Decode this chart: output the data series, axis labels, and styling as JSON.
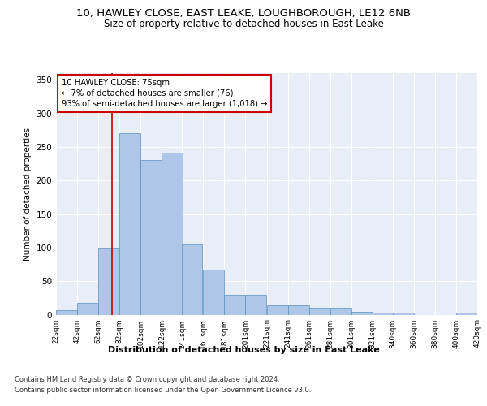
{
  "title1": "10, HAWLEY CLOSE, EAST LEAKE, LOUGHBOROUGH, LE12 6NB",
  "title2": "Size of property relative to detached houses in East Leake",
  "xlabel": "Distribution of detached houses by size in East Leake",
  "ylabel": "Number of detached properties",
  "footnote1": "Contains HM Land Registry data © Crown copyright and database right 2024.",
  "footnote2": "Contains public sector information licensed under the Open Government Licence v3.0.",
  "annotation_line1": "10 HAWLEY CLOSE: 75sqm",
  "annotation_line2": "← 7% of detached houses are smaller (76)",
  "annotation_line3": "93% of semi-detached houses are larger (1,018) →",
  "bar_left_edges": [
    22,
    42,
    62,
    82,
    102,
    122,
    141,
    161,
    181,
    201,
    221,
    241,
    261,
    281,
    301,
    321,
    340,
    360,
    380,
    400
  ],
  "bar_widths": [
    20,
    20,
    20,
    20,
    20,
    20,
    19,
    20,
    20,
    20,
    20,
    20,
    20,
    20,
    20,
    19,
    20,
    20,
    20,
    20
  ],
  "bar_heights": [
    7,
    18,
    99,
    270,
    230,
    241,
    105,
    67,
    30,
    30,
    14,
    14,
    10,
    10,
    4,
    3,
    3,
    0,
    0,
    3
  ],
  "bar_color": "#aec6e8",
  "bar_edge_color": "#5a8fc0",
  "property_x": 75,
  "vline_color": "#cc0000",
  "annotation_box_color": "#cc0000",
  "bg_color": "#e8eef8",
  "grid_color": "#ffffff",
  "xlim": [
    22,
    420
  ],
  "ylim": [
    0,
    360
  ],
  "yticks": [
    0,
    50,
    100,
    150,
    200,
    250,
    300,
    350
  ],
  "xtick_labels": [
    "22sqm",
    "42sqm",
    "62sqm",
    "82sqm",
    "102sqm",
    "122sqm",
    "141sqm",
    "161sqm",
    "181sqm",
    "201sqm",
    "221sqm",
    "241sqm",
    "261sqm",
    "281sqm",
    "301sqm",
    "321sqm",
    "340sqm",
    "360sqm",
    "380sqm",
    "400sqm",
    "420sqm"
  ],
  "xtick_positions": [
    22,
    42,
    62,
    82,
    102,
    122,
    141,
    161,
    181,
    201,
    221,
    241,
    261,
    281,
    301,
    321,
    340,
    360,
    380,
    400,
    420
  ]
}
